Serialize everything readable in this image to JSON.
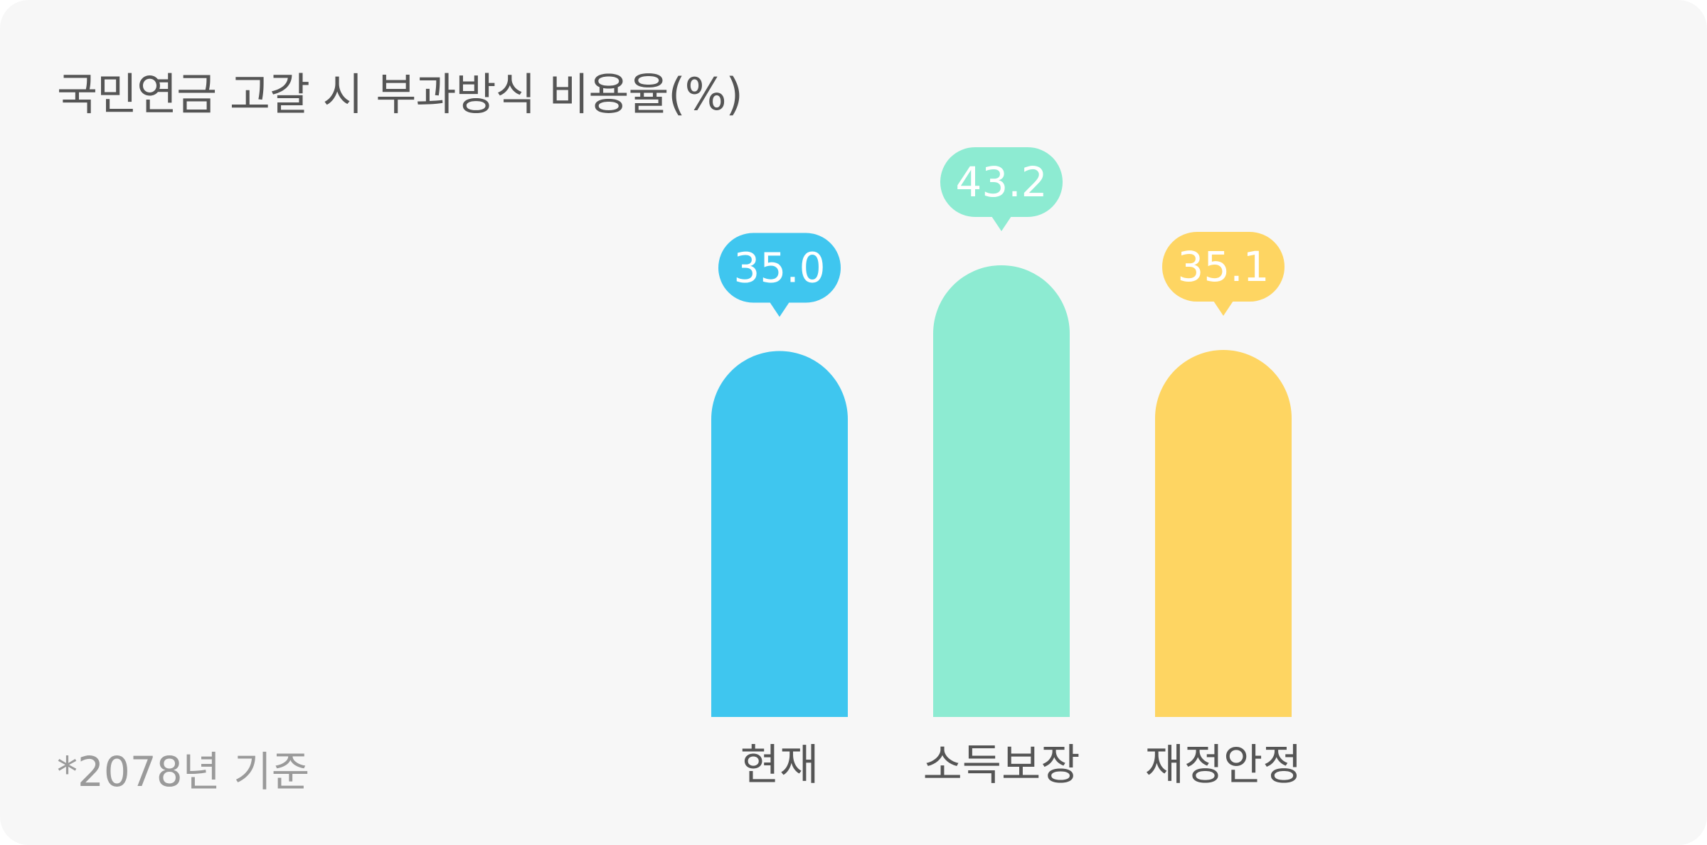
{
  "chart_data": {
    "type": "bar",
    "title": "국민연금 고갈 시 부과방식 비용율(%)",
    "categories": [
      "현재",
      "소득보장",
      "재정안정"
    ],
    "values": [
      35.0,
      43.2,
      35.1
    ],
    "value_labels": [
      "35.0",
      "43.2",
      "35.1"
    ],
    "colors": [
      "#3fc6ef",
      "#8debd2",
      "#fed562"
    ],
    "ylim": [
      0,
      55
    ],
    "grid": false,
    "legend": "none",
    "footnote": "*2078년 기준"
  }
}
